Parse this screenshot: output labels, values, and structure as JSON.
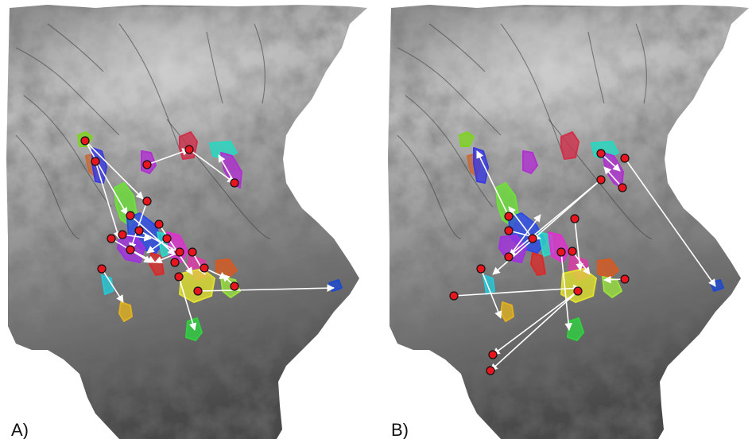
{
  "panels": [
    {
      "label": "A)",
      "zones": [
        {
          "color": "#7ed321"
        },
        {
          "color": "#c96a3a"
        },
        {
          "color": "#3a3ae0"
        },
        {
          "color": "#b030d0"
        },
        {
          "color": "#d0304a"
        },
        {
          "color": "#26d8c0"
        },
        {
          "color": "#b030d0"
        },
        {
          "color": "#6ee03a"
        },
        {
          "color": "#2a4ae8"
        },
        {
          "color": "#a030e0"
        },
        {
          "color": "#2ad8c8"
        },
        {
          "color": "#e030d0"
        },
        {
          "color": "#d82a2a"
        },
        {
          "color": "#e03aa8"
        },
        {
          "color": "#d85a20"
        },
        {
          "color": "#e0e030"
        },
        {
          "color": "#9ae040"
        },
        {
          "color": "#26c8d8"
        },
        {
          "color": "#e0b020"
        },
        {
          "color": "#30d040"
        },
        {
          "color": "#1e4ad0"
        }
      ],
      "points": 21,
      "arrows": 21
    },
    {
      "label": "B)",
      "zones": [
        {
          "color": "#7ed321"
        },
        {
          "color": "#c96a3a"
        },
        {
          "color": "#3a3ae0"
        },
        {
          "color": "#b030d0"
        },
        {
          "color": "#d0304a"
        },
        {
          "color": "#26d8c0"
        },
        {
          "color": "#b030d0"
        },
        {
          "color": "#6ee03a"
        },
        {
          "color": "#2a4ae8"
        },
        {
          "color": "#a030e0"
        },
        {
          "color": "#2ad8c8"
        },
        {
          "color": "#e030d0"
        },
        {
          "color": "#d82a2a"
        },
        {
          "color": "#e03aa8"
        },
        {
          "color": "#d85a20"
        },
        {
          "color": "#e0e030"
        },
        {
          "color": "#9ae040"
        },
        {
          "color": "#26c8d8"
        },
        {
          "color": "#e0b020"
        },
        {
          "color": "#30d040"
        },
        {
          "color": "#1e4ad0"
        }
      ],
      "points": 17,
      "arrows": 17
    }
  ],
  "colors": {
    "point_fill": "#e8141e",
    "arrow": "#ffffff",
    "background": "#ffffff"
  }
}
